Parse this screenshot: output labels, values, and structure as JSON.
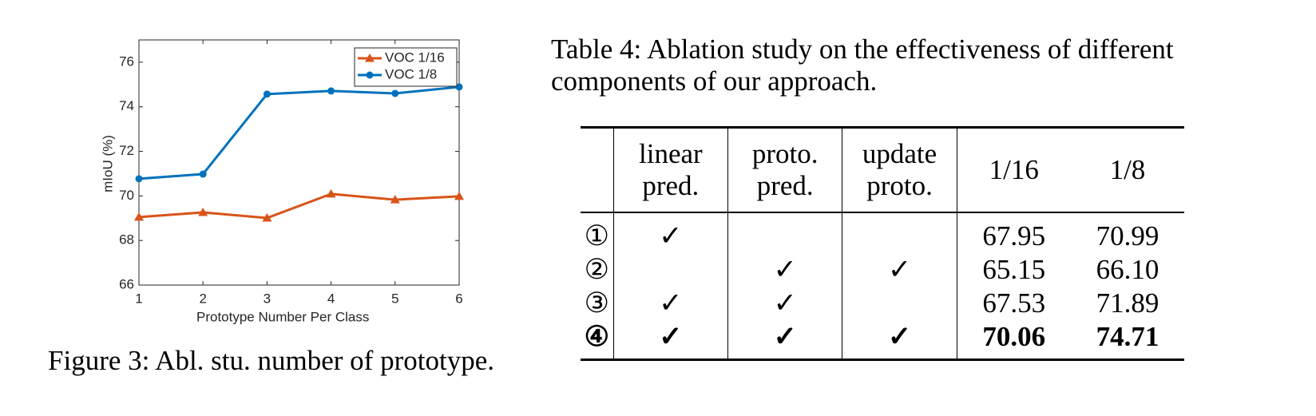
{
  "chart_data": {
    "type": "line",
    "xlabel": "Prototype Number Per Class",
    "ylabel": "mIoU (%)",
    "x": [
      1,
      2,
      3,
      4,
      5,
      6
    ],
    "series": [
      {
        "name": "VOC 1/16",
        "color": "#d95319",
        "marker": "triangle",
        "values": [
          69.05,
          69.26,
          69.01,
          70.09,
          69.83,
          69.98
        ]
      },
      {
        "name": "VOC 1/8",
        "color": "#0072bd",
        "marker": "circle",
        "values": [
          70.77,
          70.98,
          74.57,
          74.71,
          74.6,
          74.89
        ]
      }
    ],
    "xlim": [
      1,
      6
    ],
    "xticks": [
      1,
      2,
      3,
      4,
      5,
      6
    ],
    "ylim": [
      66,
      77
    ],
    "yticks": [
      66,
      68,
      70,
      72,
      74,
      76
    ],
    "grid": false,
    "legend": "northeast"
  },
  "figure_caption": "Figure 3: Abl. stu. number of prototype.",
  "table": {
    "caption": "Table 4: Ablation study on the effectiveness of different components of our approach.",
    "header": [
      null,
      "linear pred.",
      "proto. pred.",
      "update proto.",
      "1/16",
      "1/8"
    ],
    "rows": [
      [
        "①",
        "✓",
        null,
        null,
        "67.95",
        "70.99"
      ],
      [
        "②",
        null,
        "✓",
        "✓",
        "65.15",
        "66.10"
      ],
      [
        "③",
        "✓",
        "✓",
        null,
        "67.53",
        "71.89"
      ],
      [
        "④",
        "✓",
        "✓",
        "✓",
        "70.06",
        "74.71"
      ]
    ]
  }
}
